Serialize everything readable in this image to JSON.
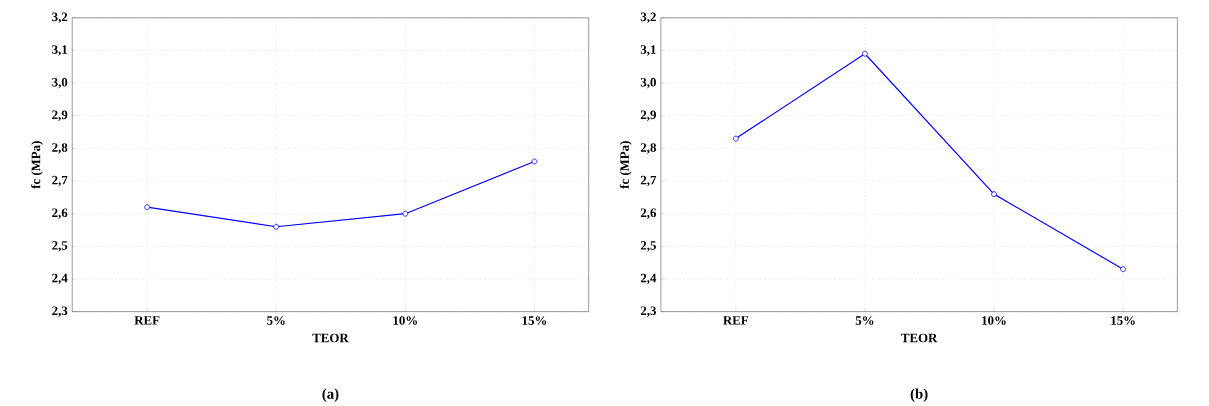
{
  "chart_data": [
    {
      "type": "line",
      "categories": [
        "REF",
        "5%",
        "10%",
        "15%"
      ],
      "xlabel": "TEOR",
      "ylabel": "fc (MPa)",
      "annotations": [
        "(a)"
      ],
      "series": [
        {
          "color": "#0000ff",
          "values": [
            2.62,
            2.56,
            2.6,
            2.76
          ]
        }
      ],
      "ylim": [
        2.3,
        3.2
      ],
      "yticks": [
        {
          "value": 2.3,
          "label": "2,3"
        },
        {
          "value": 2.4,
          "label": "2,4"
        },
        {
          "value": 2.5,
          "label": "2,5"
        },
        {
          "value": 2.6,
          "label": "2,6"
        },
        {
          "value": 2.7,
          "label": "2,7"
        },
        {
          "value": 2.8,
          "label": "2,8"
        },
        {
          "value": 2.9,
          "label": "2,9"
        },
        {
          "value": 3.0,
          "label": "3,0"
        },
        {
          "value": 3.1,
          "label": "3,1"
        },
        {
          "value": 3.2,
          "label": "3,2"
        }
      ],
      "grid": true,
      "marker": "circle",
      "line_style": "solid"
    },
    {
      "type": "line",
      "categories": [
        "REF",
        "5%",
        "10%",
        "15%"
      ],
      "xlabel": "TEOR",
      "ylabel": "fc (MPa)",
      "annotations": [
        "(b)"
      ],
      "series": [
        {
          "color": "#0000ff",
          "values": [
            2.83,
            3.09,
            2.66,
            2.43
          ]
        }
      ],
      "ylim": [
        2.3,
        3.2
      ],
      "yticks": [
        {
          "value": 2.3,
          "label": "2,3"
        },
        {
          "value": 2.4,
          "label": "2,4"
        },
        {
          "value": 2.5,
          "label": "2,5"
        },
        {
          "value": 2.6,
          "label": "2,6"
        },
        {
          "value": 2.7,
          "label": "2,7"
        },
        {
          "value": 2.8,
          "label": "2,8"
        },
        {
          "value": 2.9,
          "label": "2,9"
        },
        {
          "value": 3.0,
          "label": "3,0"
        },
        {
          "value": 3.1,
          "label": "3,1"
        },
        {
          "value": 3.2,
          "label": "3,2"
        }
      ],
      "grid": true,
      "marker": "circle",
      "line_style": "solid"
    }
  ]
}
